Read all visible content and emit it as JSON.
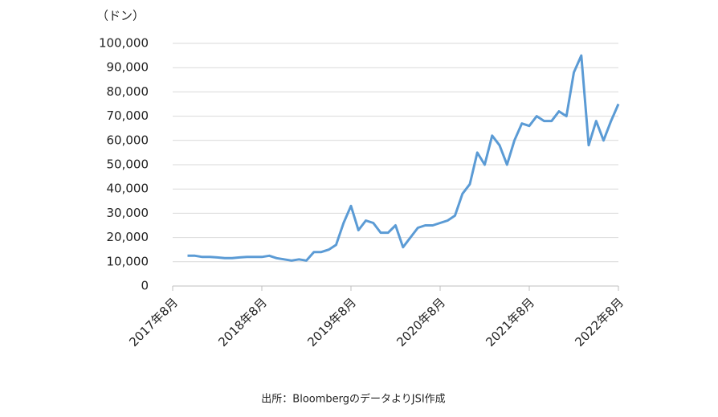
{
  "chart_data": {
    "type": "line",
    "y_unit_label": "（ドン）",
    "source": "出所：BloombergのデータよりJSI作成",
    "color": "#5b9bd5",
    "grid": true,
    "x": [
      "2017-10",
      "2017-11",
      "2017-12",
      "2018-01",
      "2018-02",
      "2018-03",
      "2018-04",
      "2018-05",
      "2018-06",
      "2018-07",
      "2018-08",
      "2018-09",
      "2018-10",
      "2018-11",
      "2018-12",
      "2019-01",
      "2019-02",
      "2019-03",
      "2019-04",
      "2019-05",
      "2019-06",
      "2019-07",
      "2019-08",
      "2019-09",
      "2019-10",
      "2019-11",
      "2019-12",
      "2020-01",
      "2020-02",
      "2020-03",
      "2020-04",
      "2020-05",
      "2020-06",
      "2020-07",
      "2020-08",
      "2020-09",
      "2020-10",
      "2020-11",
      "2020-12",
      "2021-01",
      "2021-02",
      "2021-03",
      "2021-04",
      "2021-05",
      "2021-06",
      "2021-07",
      "2021-08",
      "2021-09",
      "2021-10",
      "2021-11",
      "2021-12",
      "2022-01",
      "2022-02",
      "2022-03",
      "2022-04",
      "2022-05",
      "2022-06",
      "2022-07",
      "2022-08"
    ],
    "values": [
      12500,
      12500,
      12000,
      12000,
      11800,
      11500,
      11500,
      11800,
      12000,
      12000,
      12000,
      12500,
      11500,
      11000,
      10500,
      11000,
      10500,
      14000,
      14000,
      15000,
      17000,
      26000,
      33000,
      23000,
      27000,
      26000,
      22000,
      22000,
      25000,
      16000,
      20000,
      24000,
      25000,
      25000,
      26000,
      27000,
      29000,
      38000,
      42000,
      55000,
      50000,
      62000,
      58000,
      50000,
      60000,
      67000,
      66000,
      70000,
      68000,
      68000,
      72000,
      70000,
      88000,
      95000,
      58000,
      68000,
      60000,
      68000,
      75000
    ],
    "xlim": [
      "2017-08",
      "2022-08"
    ],
    "xticks": [
      {
        "value": "2017-08",
        "label": "2017年8月"
      },
      {
        "value": "2018-08",
        "label": "2018年8月"
      },
      {
        "value": "2019-08",
        "label": "2019年8月"
      },
      {
        "value": "2020-08",
        "label": "2020年8月"
      },
      {
        "value": "2021-08",
        "label": "2021年8月"
      },
      {
        "value": "2022-08",
        "label": "2022年8月"
      }
    ],
    "ylim": [
      0,
      100000
    ],
    "yticks": [
      0,
      {
        "value": 10000,
        "label": "10,000"
      },
      {
        "value": 20000,
        "label": "20,000"
      },
      {
        "value": 30000,
        "label": "30,000"
      },
      {
        "value": 40000,
        "label": "40,000"
      },
      {
        "value": 50000,
        "label": "50,000"
      },
      {
        "value": 60000,
        "label": "60,000"
      },
      {
        "value": 70000,
        "label": "70,000"
      },
      {
        "value": 80000,
        "label": "80,000"
      },
      {
        "value": 90000,
        "label": "90,000"
      },
      {
        "value": 100000,
        "label": "100,000"
      }
    ]
  }
}
